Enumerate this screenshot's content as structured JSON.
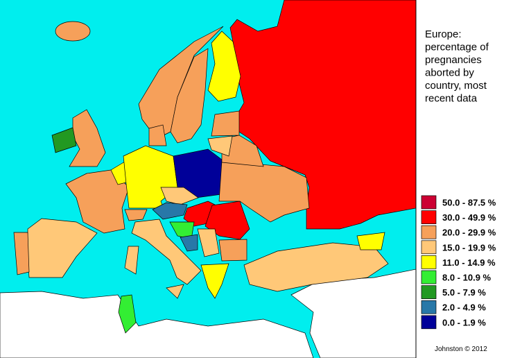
{
  "title_lines": [
    "Europe:",
    "percentage of",
    "pregnancies",
    "aborted by",
    "country, most",
    "recent data"
  ],
  "legend": [
    {
      "label": "50.0 - 87.5 %",
      "color": "#cc0033"
    },
    {
      "label": "30.0 - 49.9 %",
      "color": "#ff0000"
    },
    {
      "label": "20.0 - 29.9 %",
      "color": "#f6a05a"
    },
    {
      "label": "15.0 - 19.9 %",
      "color": "#ffc878"
    },
    {
      "label": "11.0 - 14.9 %",
      "color": "#ffff00"
    },
    {
      "label": "8.0 - 10.9 %",
      "color": "#33ee33"
    },
    {
      "label": "5.0 - 7.9 %",
      "color": "#229922"
    },
    {
      "label": "2.0 - 4.9 %",
      "color": "#2878a8"
    },
    {
      "label": "0.0 - 1.9 %",
      "color": "#000099"
    }
  ],
  "credit": "Johnston © 2012"
}
